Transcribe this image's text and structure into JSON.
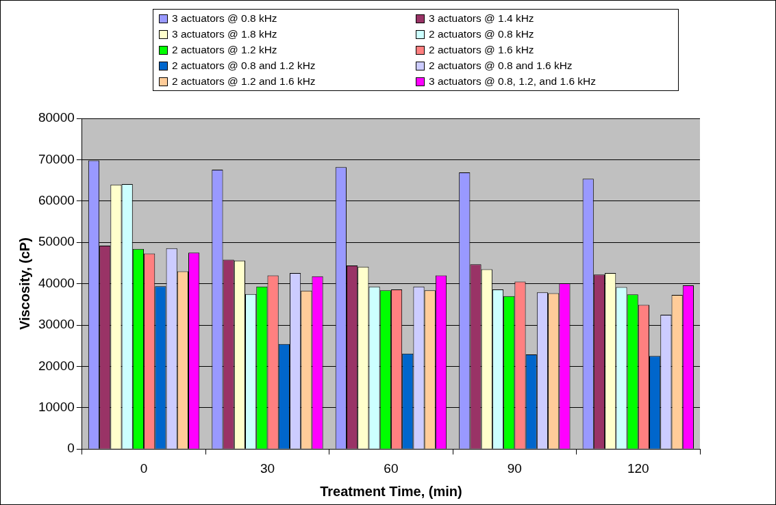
{
  "chart_data": {
    "type": "bar",
    "xlabel": "Treatment Time, (min)",
    "ylabel": "Viscosity, (cP)",
    "categories": [
      "0",
      "30",
      "60",
      "90",
      "120"
    ],
    "ylim": [
      0,
      80000
    ],
    "yticks": [
      0,
      10000,
      20000,
      30000,
      40000,
      50000,
      60000,
      70000,
      80000
    ],
    "grid": "y",
    "legend": "top",
    "series": [
      {
        "name": "3 actuators @ 0.8 kHz",
        "color": "#9999ff",
        "values": [
          69800,
          67600,
          68200,
          66900,
          65400
        ]
      },
      {
        "name": "3 actuators @ 1.4 kHz",
        "color": "#993366",
        "values": [
          49200,
          45800,
          44400,
          44700,
          42200
        ]
      },
      {
        "name": "3 actuators @ 1.8 kHz",
        "color": "#ffffcc",
        "values": [
          64000,
          45600,
          44100,
          43500,
          42600
        ]
      },
      {
        "name": "2 actuators @ 0.8 kHz",
        "color": "#ccffff",
        "values": [
          64100,
          37500,
          39300,
          38600,
          39200
        ]
      },
      {
        "name": "2 actuators @ 1.2 kHz",
        "color": "#00ff00",
        "values": [
          48400,
          39300,
          38400,
          37000,
          37400
        ]
      },
      {
        "name": "2 actuators @ 1.6 kHz",
        "color": "#ff8080",
        "values": [
          47300,
          42000,
          38600,
          40500,
          34900
        ]
      },
      {
        "name": "2 actuators @ 0.8 and 1.2 kHz",
        "color": "#0066cc",
        "values": [
          39400,
          25400,
          23100,
          22900,
          22500
        ]
      },
      {
        "name": "2 actuators @ 0.8 and 1.6 kHz",
        "color": "#ccccff",
        "values": [
          48600,
          42600,
          39300,
          37900,
          32500
        ]
      },
      {
        "name": "2 actuators @ 1.2 and 1.6 kHz",
        "color": "#ffcc99",
        "values": [
          43000,
          38300,
          38400,
          37700,
          37300
        ]
      },
      {
        "name": "3 actuators @ 0.8, 1.2, and 1.6 kHz",
        "color": "#ff00ff",
        "values": [
          47500,
          41800,
          42000,
          40100,
          39600
        ]
      }
    ]
  }
}
